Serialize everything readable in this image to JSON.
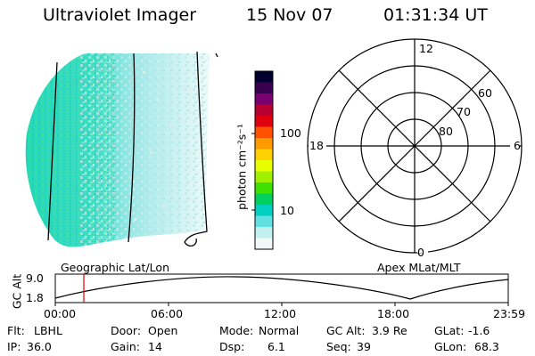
{
  "header": {
    "instrument": "Ultraviolet Imager",
    "date": "15 Nov 07",
    "time": "01:31:34 UT"
  },
  "colorbar": {
    "unit_label": "photon cm⁻²s⁻¹",
    "ticks": [
      {
        "label": "100",
        "value": 100
      },
      {
        "label": "10",
        "value": 10
      }
    ],
    "colors": [
      "#000030",
      "#3a0050",
      "#7a0070",
      "#b80030",
      "#e00010",
      "#ff5000",
      "#ff9900",
      "#ffd000",
      "#e8ff00",
      "#a0f000",
      "#40e000",
      "#00d060",
      "#00d0c0",
      "#60e0e0",
      "#c0f0f0",
      "#f0f8f8"
    ]
  },
  "polar_plot": {
    "mlt_labels": {
      "top": "12",
      "right": "6",
      "bottom": "0",
      "left": "18"
    },
    "lat_labels": [
      "60",
      "70",
      "80"
    ]
  },
  "timeline": {
    "left_label": "Geographic Lat/Lon",
    "right_label": "Apex MLat/MLT",
    "y_axis_label": "GC Alt",
    "y_ticks": [
      "9.0",
      "1.8"
    ],
    "x_ticks": [
      "00:00",
      "06:00",
      "12:00",
      "18:00",
      "23:59"
    ],
    "current_time_marker": "01:31"
  },
  "status": {
    "row1": [
      {
        "key": "Flt:",
        "value": "LBHL"
      },
      {
        "key": "Door:",
        "value": "Open"
      },
      {
        "key": "Mode:",
        "value": "Normal"
      },
      {
        "key": "GC Alt:",
        "value": "3.9 Re"
      },
      {
        "key": "GLat:",
        "value": "-1.6"
      }
    ],
    "row2": [
      {
        "key": "IP:",
        "value": "36.0"
      },
      {
        "key": "Gain:",
        "value": "14"
      },
      {
        "key": "Dsp:",
        "value": "6.1"
      },
      {
        "key": "Seq:",
        "value": "39"
      },
      {
        "key": "GLon:",
        "value": "68.3"
      }
    ]
  }
}
